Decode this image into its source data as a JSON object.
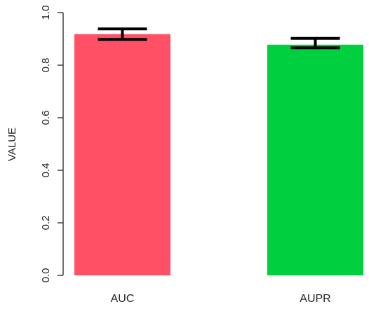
{
  "chart_data": {
    "type": "bar",
    "title": "",
    "xlabel": "",
    "ylabel": "VALUE",
    "categories": [
      "AUC",
      "AUPR"
    ],
    "values": [
      0.918,
      0.878
    ],
    "errors": [
      {
        "low": 0.898,
        "high": 0.938
      },
      {
        "low": 0.866,
        "high": 0.902
      }
    ],
    "bar_colors": [
      "#FF5066",
      "#00D040"
    ],
    "error_bar_color": "#000000",
    "ylim": [
      0,
      1.0
    ],
    "yticks": [
      {
        "value": 0.0,
        "label": "0.0"
      },
      {
        "value": 0.2,
        "label": "0.2"
      },
      {
        "value": 0.4,
        "label": "0.4"
      },
      {
        "value": 0.6,
        "label": "0.6"
      },
      {
        "value": 0.8,
        "label": "0.8"
      },
      {
        "value": 1.0,
        "label": "1.0"
      }
    ],
    "grid": false,
    "legend": "none"
  }
}
